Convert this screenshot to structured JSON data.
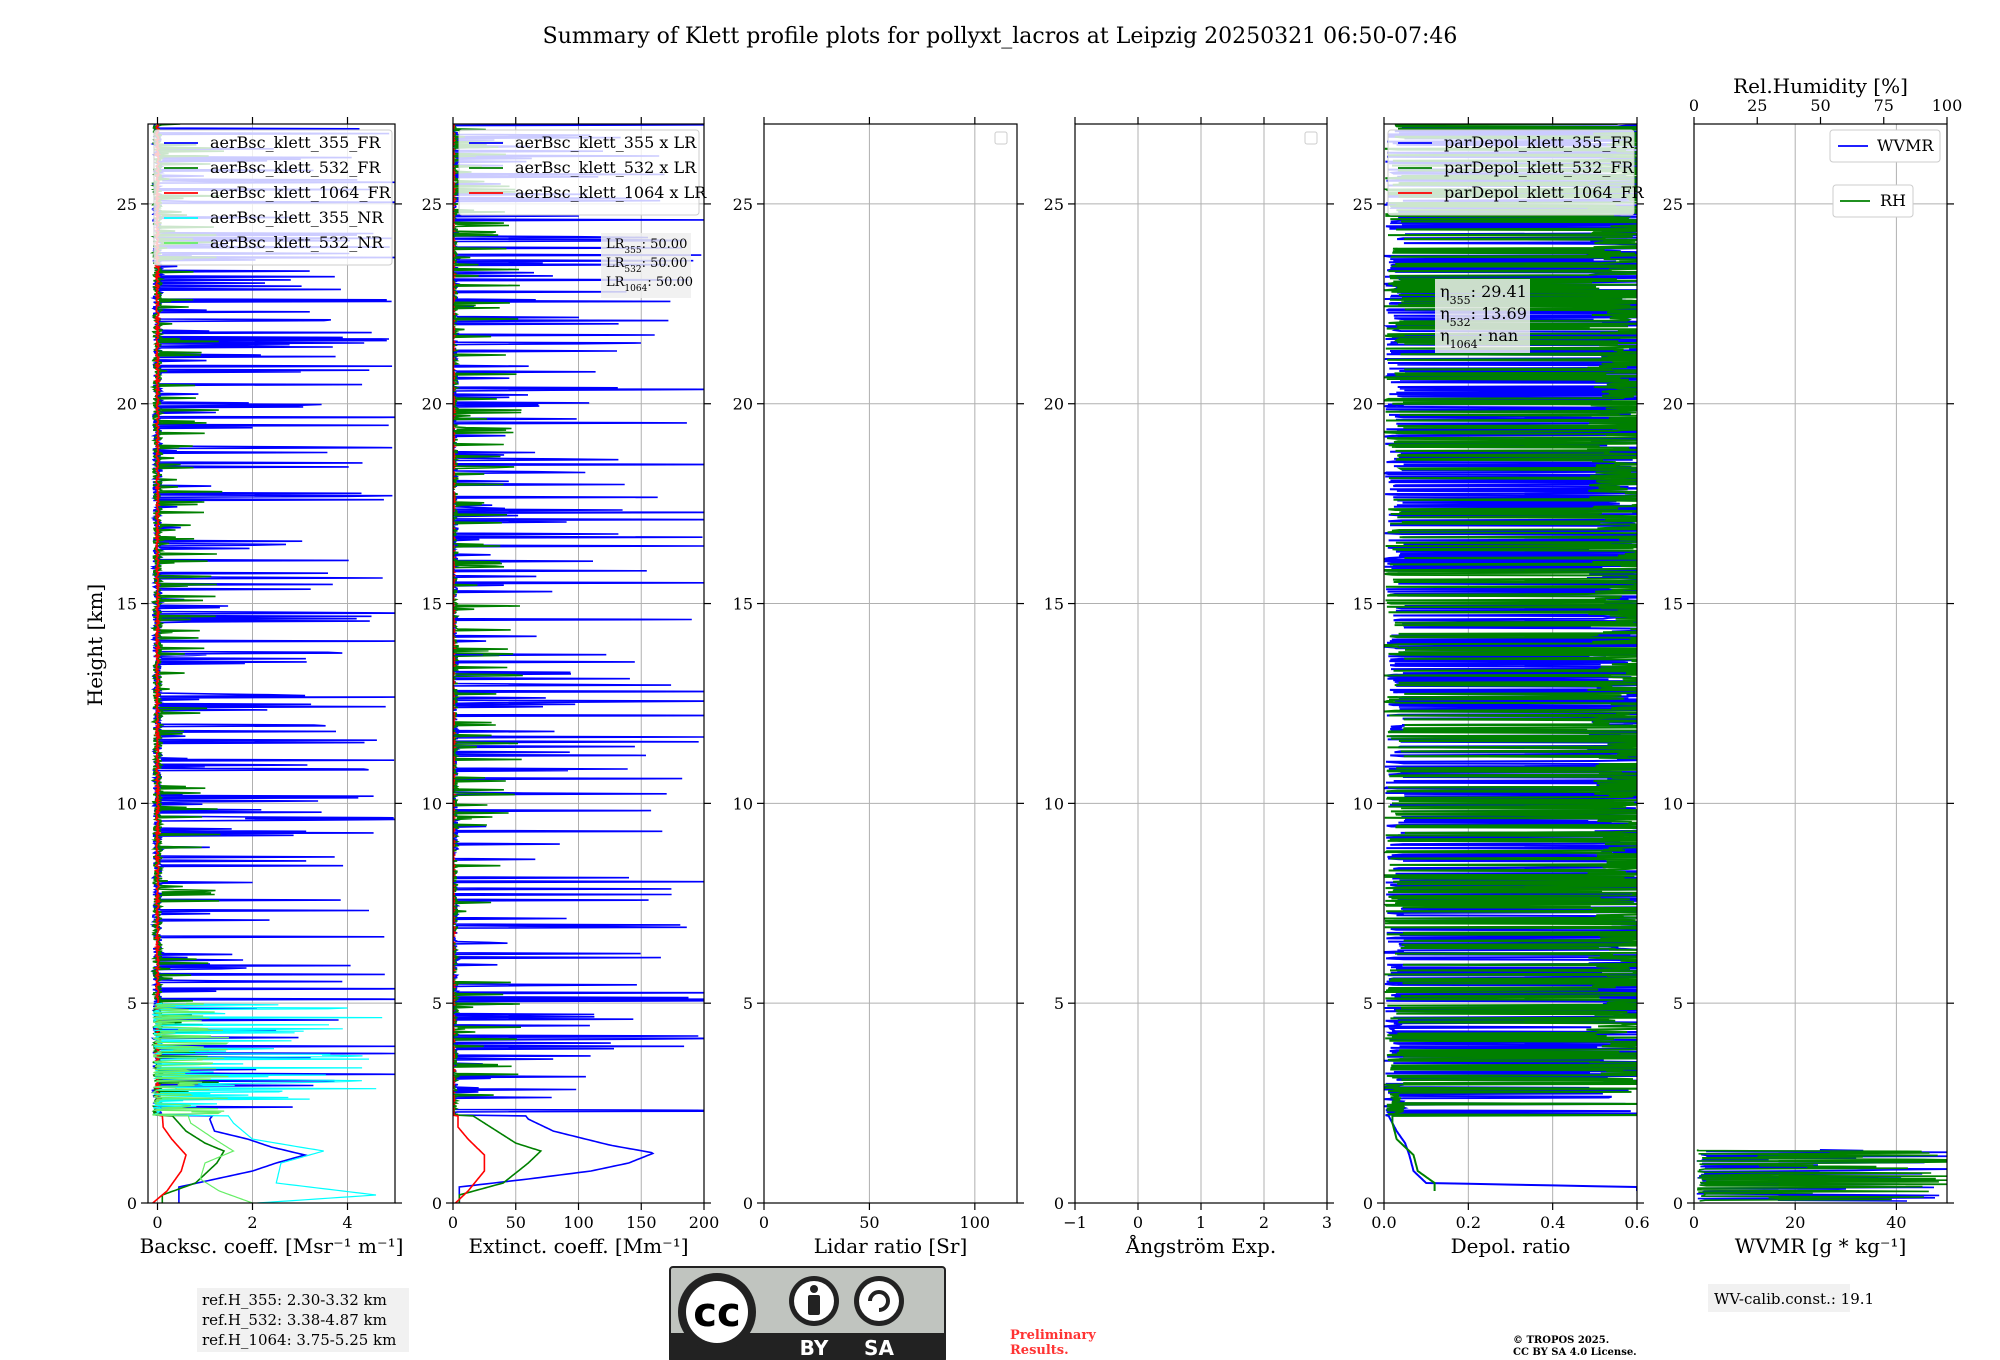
{
  "title": "Summary of Klett profile plots for pollyxt_lacros at Leipzig 20250321 06:50-07:46",
  "ylabel": "Height [km]",
  "ylim": [
    0,
    27
  ],
  "yticks": [
    0,
    5,
    10,
    15,
    20,
    25
  ],
  "colors": {
    "blue": "#0000ff",
    "green": "#008000",
    "red": "#ff0000",
    "cyan": "#00ffff",
    "lightgreen": "#66ee66"
  },
  "chart_data": [
    {
      "type": "line",
      "id": "bsc",
      "xlabel": "Backsc. coeff. [Msr⁻¹ m⁻¹]",
      "xlim": [
        -0.2,
        5
      ],
      "xticks": [
        0,
        2,
        4
      ],
      "series": [
        {
          "name": "aerBsc_klett_355_FR",
          "color": "#0000ff",
          "profile": [
            [
              0.4,
              0.45
            ],
            [
              0.8,
              2.0
            ],
            [
              1.0,
              2.5
            ],
            [
              1.2,
              3.1
            ],
            [
              1.4,
              2.4
            ],
            [
              1.6,
              1.9
            ],
            [
              1.8,
              1.2
            ],
            [
              2.1,
              1.1
            ],
            [
              2.4,
              1.3
            ],
            [
              2.7,
              0.6
            ],
            [
              3.0,
              0.3
            ],
            [
              4.0,
              0.1
            ],
            [
              5.0,
              0.05
            ]
          ]
        },
        {
          "name": "aerBsc_klett_532_FR",
          "color": "#008000",
          "profile": [
            [
              0.2,
              0.1
            ],
            [
              0.5,
              0.8
            ],
            [
              1.0,
              1.25
            ],
            [
              1.3,
              1.4
            ],
            [
              1.5,
              1.0
            ],
            [
              1.8,
              0.6
            ],
            [
              2.2,
              0.3
            ],
            [
              3.0,
              0.1
            ],
            [
              5.0,
              0.05
            ]
          ]
        },
        {
          "name": "aerBsc_klett_1064_FR",
          "color": "#ff0000",
          "profile": [
            [
              0.0,
              -0.1
            ],
            [
              0.3,
              0.2
            ],
            [
              0.8,
              0.5
            ],
            [
              1.2,
              0.6
            ],
            [
              1.6,
              0.3
            ],
            [
              1.9,
              0.12
            ],
            [
              3.0,
              0.05
            ],
            [
              27.0,
              0.0
            ]
          ]
        },
        {
          "name": "aerBsc_klett_355_NR",
          "color": "#00ffff",
          "profile": [
            [
              0.0,
              2.1
            ],
            [
              0.2,
              4.6
            ],
            [
              0.5,
              2.5
            ],
            [
              1.0,
              2.6
            ],
            [
              1.3,
              3.5
            ],
            [
              1.6,
              2.0
            ],
            [
              2.0,
              1.6
            ],
            [
              3.0,
              1.0
            ],
            [
              4.0,
              1.5
            ],
            [
              5.0,
              0.5
            ]
          ]
        },
        {
          "name": "aerBsc_klett_532_NR",
          "color": "#66ee66",
          "profile": [
            [
              0.0,
              2.0
            ],
            [
              0.3,
              1.3
            ],
            [
              0.6,
              0.9
            ],
            [
              1.0,
              1.0
            ],
            [
              1.3,
              1.6
            ],
            [
              1.6,
              1.2
            ],
            [
              2.0,
              0.7
            ],
            [
              3.0,
              0.4
            ],
            [
              5.0,
              0.1
            ]
          ]
        }
      ]
    },
    {
      "type": "line",
      "id": "ext",
      "xlabel": "Extinct. coeff. [Mm⁻¹]",
      "xlim": [
        0,
        200
      ],
      "xticks": [
        0,
        50,
        100,
        150,
        200
      ],
      "series": [
        {
          "name": "aerBsc_klett_355 x LR",
          "color": "#0000ff",
          "profile": [
            [
              0.4,
              5
            ],
            [
              0.6,
              60
            ],
            [
              0.8,
              110
            ],
            [
              1.0,
              140
            ],
            [
              1.25,
              160
            ],
            [
              1.45,
              125
            ],
            [
              1.8,
              80
            ],
            [
              2.1,
              60
            ],
            [
              2.5,
              50
            ],
            [
              2.8,
              20
            ],
            [
              3.0,
              5
            ]
          ]
        },
        {
          "name": "aerBsc_klett_532 x LR",
          "color": "#008000",
          "profile": [
            [
              0.2,
              5
            ],
            [
              0.5,
              40
            ],
            [
              1.0,
              60
            ],
            [
              1.3,
              70
            ],
            [
              1.5,
              50
            ],
            [
              1.9,
              30
            ],
            [
              2.3,
              10
            ],
            [
              3.0,
              3
            ]
          ]
        },
        {
          "name": "aerBsc_klett_1064 x LR",
          "color": "#ff0000",
          "profile": [
            [
              0.0,
              2
            ],
            [
              0.3,
              12
            ],
            [
              0.8,
              25
            ],
            [
              1.2,
              25
            ],
            [
              1.6,
              12
            ],
            [
              1.9,
              4
            ],
            [
              27.0,
              0
            ]
          ]
        }
      ]
    },
    {
      "type": "line",
      "id": "lr",
      "xlabel": "Lidar ratio [Sr]",
      "xlim": [
        0,
        120
      ],
      "xticks": [
        0,
        50,
        100
      ],
      "series": []
    },
    {
      "type": "line",
      "id": "ang",
      "xlabel": "Ångström Exp.",
      "xlim": [
        -1,
        3
      ],
      "xticks": [
        -1,
        0,
        1,
        2,
        3
      ],
      "series": []
    },
    {
      "type": "line",
      "id": "depol",
      "xlabel": "Depol. ratio",
      "xlim": [
        0,
        0.6
      ],
      "xticks": [
        0.0,
        0.2,
        0.4,
        0.6
      ],
      "series": [
        {
          "name": "parDepol_klett_355_FR",
          "color": "#0000ff",
          "profile": [
            [
              0.4,
              0.6
            ],
            [
              0.5,
              0.1
            ],
            [
              0.8,
              0.07
            ],
            [
              1.2,
              0.06
            ],
            [
              1.5,
              0.05
            ],
            [
              1.8,
              0.03
            ],
            [
              2.2,
              0.01
            ],
            [
              2.5,
              0.02
            ],
            [
              3.0,
              0.0
            ]
          ]
        },
        {
          "name": "parDepol_klett_532_FR",
          "color": "#008000",
          "profile": [
            [
              0.5,
              0.12
            ],
            [
              0.8,
              0.08
            ],
            [
              1.2,
              0.07
            ],
            [
              1.6,
              0.03
            ],
            [
              2.0,
              0.02
            ]
          ]
        },
        {
          "name": "parDepol_klett_1064_FR",
          "color": "#ff0000",
          "profile": []
        }
      ]
    },
    {
      "type": "line",
      "id": "wv",
      "xlabel": "WVMR [g * kg⁻¹]",
      "xlim": [
        0,
        50
      ],
      "xticks": [
        0,
        20,
        40
      ],
      "top_xlabel": "Rel.Humidity [%]",
      "top_xlim": [
        0,
        100
      ],
      "top_xticks": [
        0,
        25,
        50,
        75,
        100
      ],
      "series": [
        {
          "name": "WVMR",
          "color": "#0000ff",
          "profile": []
        },
        {
          "name": "RH",
          "color": "#008000",
          "profile": []
        }
      ]
    }
  ],
  "annotations": {
    "lr355": "LR355: 50.00",
    "lr_rows": [
      {
        "base": "LR",
        "sub": "355",
        "val": ": 50.00"
      },
      {
        "base": "LR",
        "sub": "532",
        "val": ": 50.00"
      },
      {
        "base": "LR",
        "sub": "1064",
        "val": ": 50.00"
      }
    ],
    "eta_rows": [
      {
        "base": "η",
        "sub": "355",
        "val": ": 29.41"
      },
      {
        "base": "η",
        "sub": "532",
        "val": ": 13.69"
      },
      {
        "base": "η",
        "sub": "1064",
        "val": ": nan"
      }
    ],
    "refH": [
      "ref.H_355: 2.30-3.32 km",
      "ref.H_532: 3.38-4.87 km",
      "ref.H_1064: 3.75-5.25 km"
    ],
    "wv_calib": "WV-calib.const.: 19.1",
    "preliminary": [
      "Preliminary",
      "Results."
    ],
    "copyright": [
      "© TROPOS 2025.",
      "CC BY SA 4.0 License."
    ],
    "license_badge": {
      "cc": "cc",
      "by": "BY",
      "sa": "SA"
    }
  }
}
